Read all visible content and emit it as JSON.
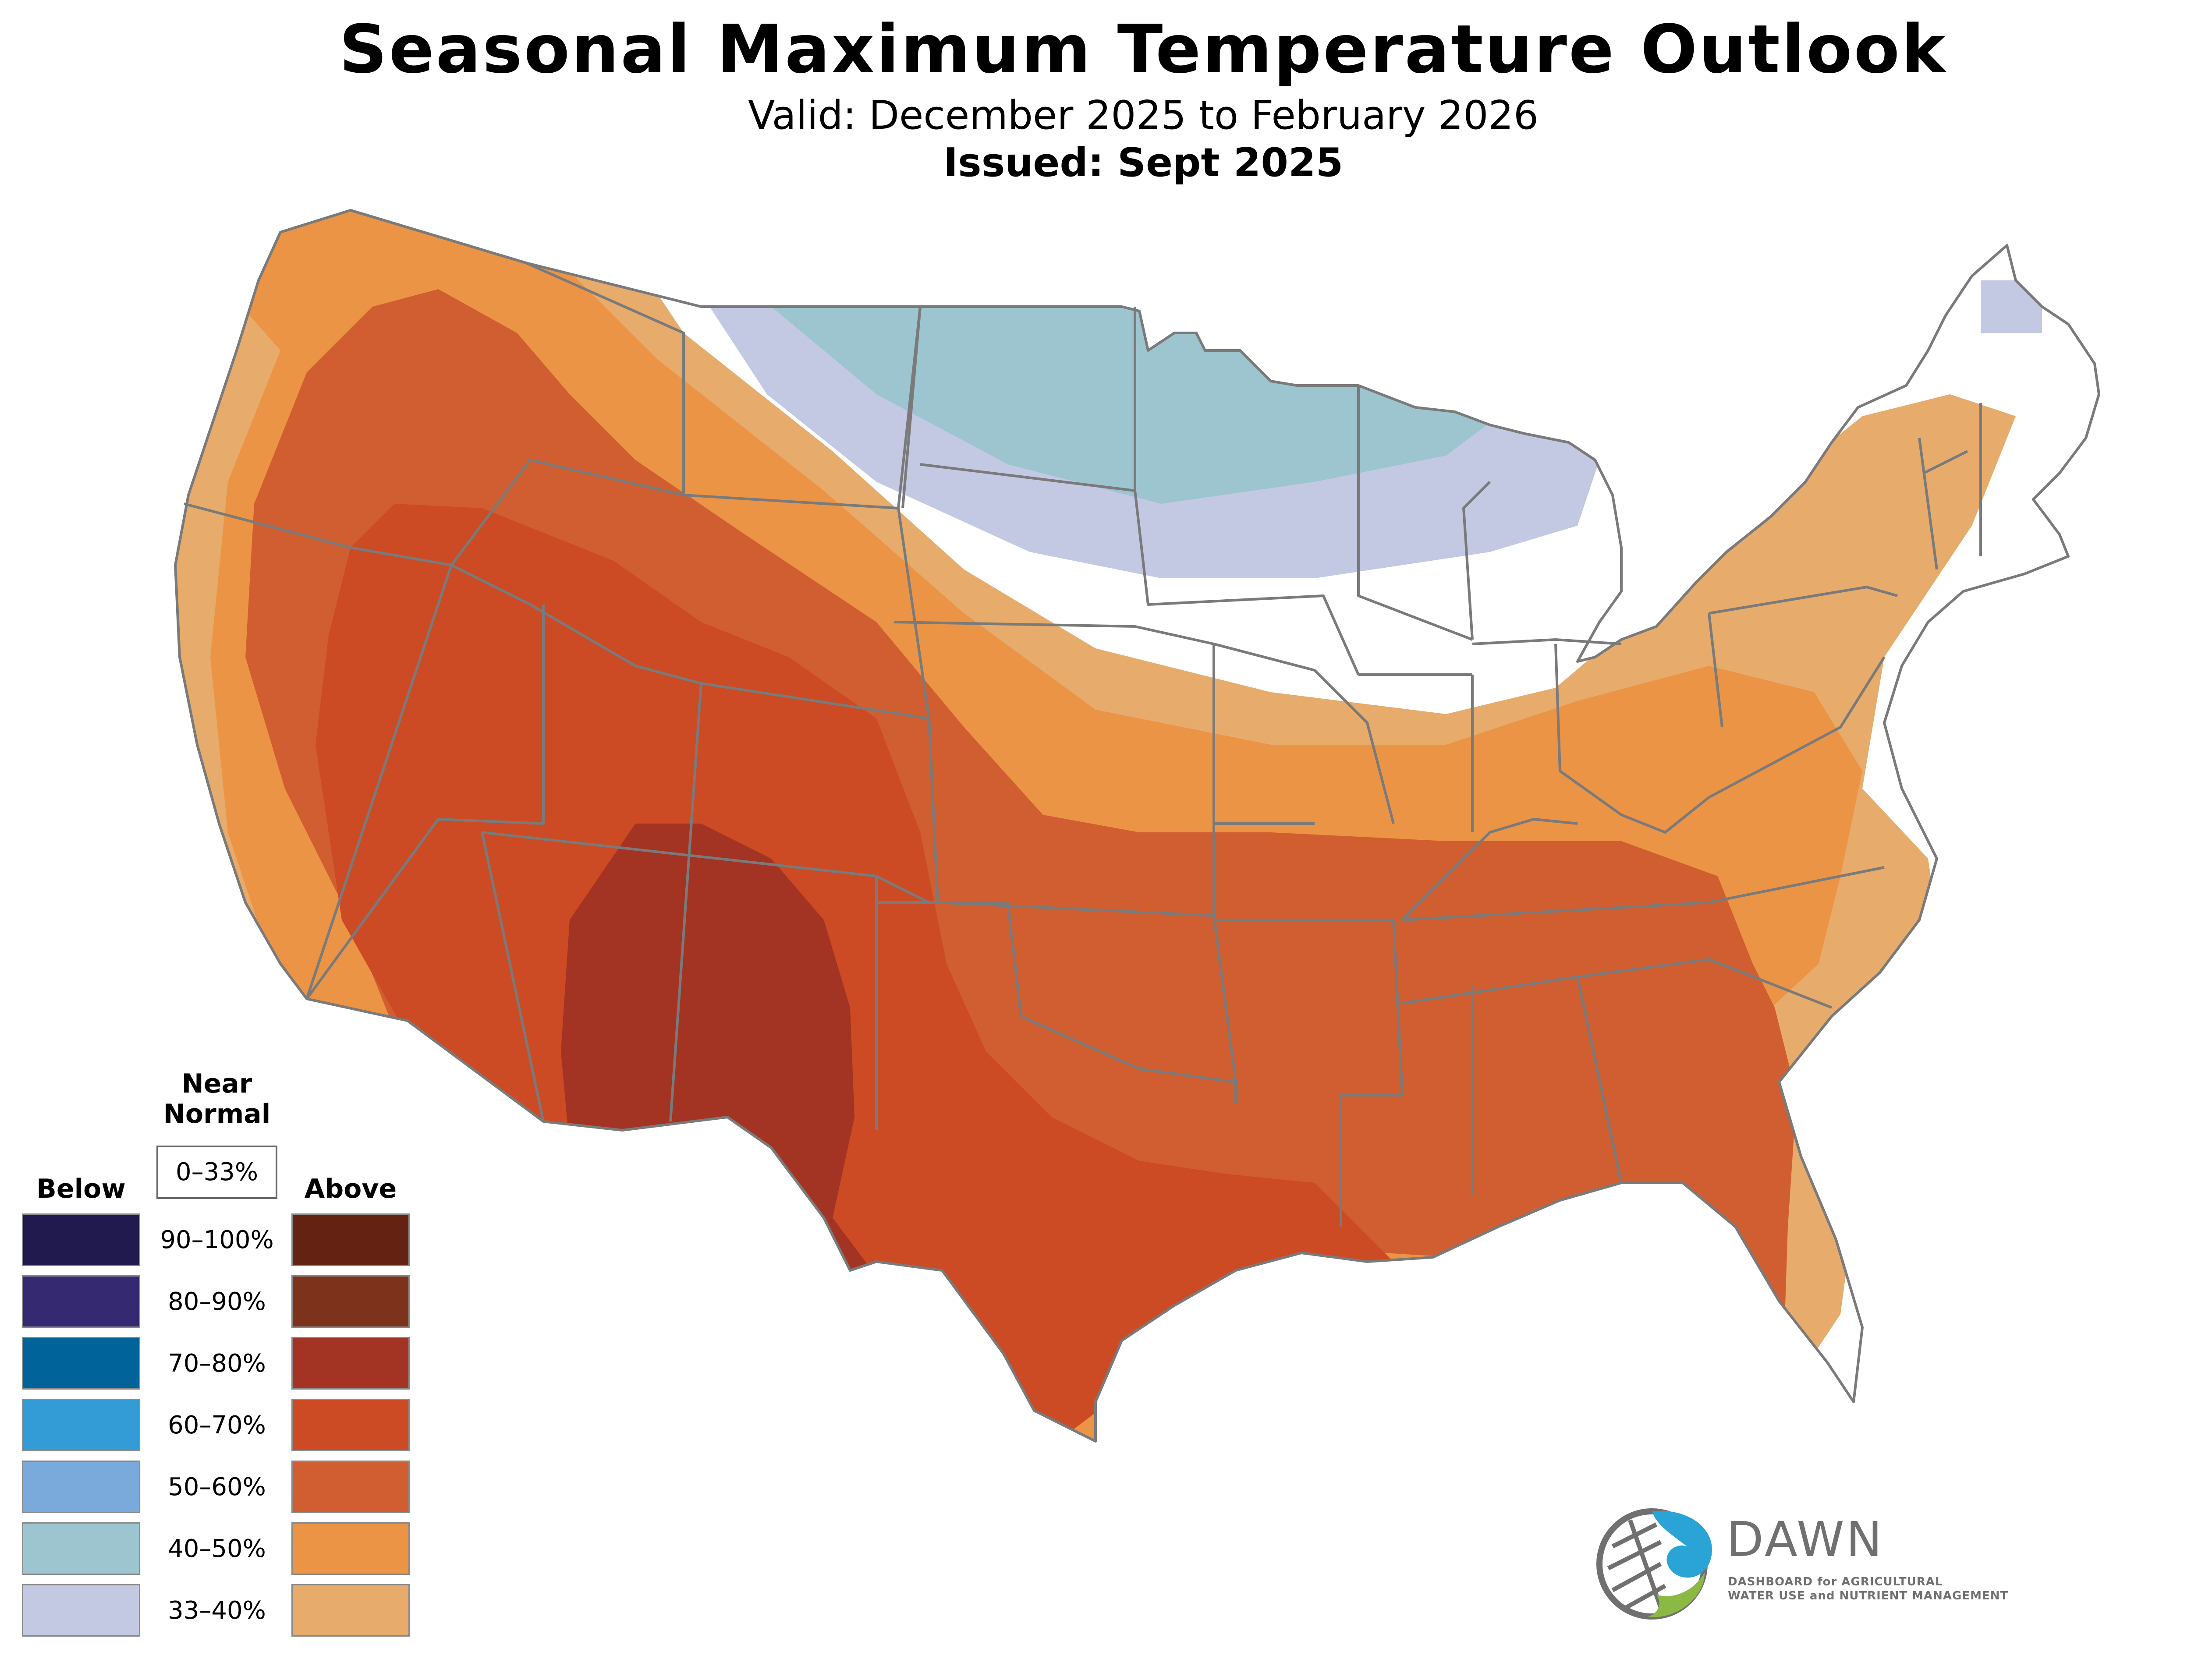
{
  "header": {
    "title": "Seasonal Maximum Temperature Outlook",
    "valid": "Valid: December 2025 to February 2026",
    "issued": "Issued: Sept 2025"
  },
  "legend": {
    "near_normal_label": "Near\nNormal",
    "near_normal_range": "0–33%",
    "below_label": "Below",
    "above_label": "Above",
    "ranges": [
      "90–100%",
      "80–90%",
      "70–80%",
      "60–70%",
      "50–60%",
      "40–50%",
      "33–40%"
    ],
    "below_colors": [
      "#211a4f",
      "#352a72",
      "#00649a",
      "#339cd6",
      "#7aaadc",
      "#9dc5cf",
      "#c3c9e3"
    ],
    "above_colors": [
      "#642312",
      "#7d321b",
      "#a33322",
      "#cc4a24",
      "#d15e30",
      "#ec9446",
      "#e7ab6b"
    ]
  },
  "map": {
    "region": "Contiguous United States",
    "categories": [
      {
        "name": "above-33-40",
        "color": "#e7ab6b"
      },
      {
        "name": "above-40-50",
        "color": "#ec9446"
      },
      {
        "name": "above-50-60",
        "color": "#d15e30"
      },
      {
        "name": "above-60-70",
        "color": "#cc4a24"
      },
      {
        "name": "above-70-80",
        "color": "#a33322"
      },
      {
        "name": "below-33-40",
        "color": "#c3c9e3"
      },
      {
        "name": "below-40-50",
        "color": "#9dc5cf"
      }
    ],
    "border_color": "#7a7a7a"
  },
  "logo": {
    "name": "DAWN",
    "tagline_1": "DASHBOARD for AGRICULTURAL",
    "tagline_2": "WATER USE and NUTRIENT MANAGEMENT",
    "colors": {
      "blue": "#2aa4d6",
      "green": "#8bb944",
      "gray": "#707070"
    }
  }
}
